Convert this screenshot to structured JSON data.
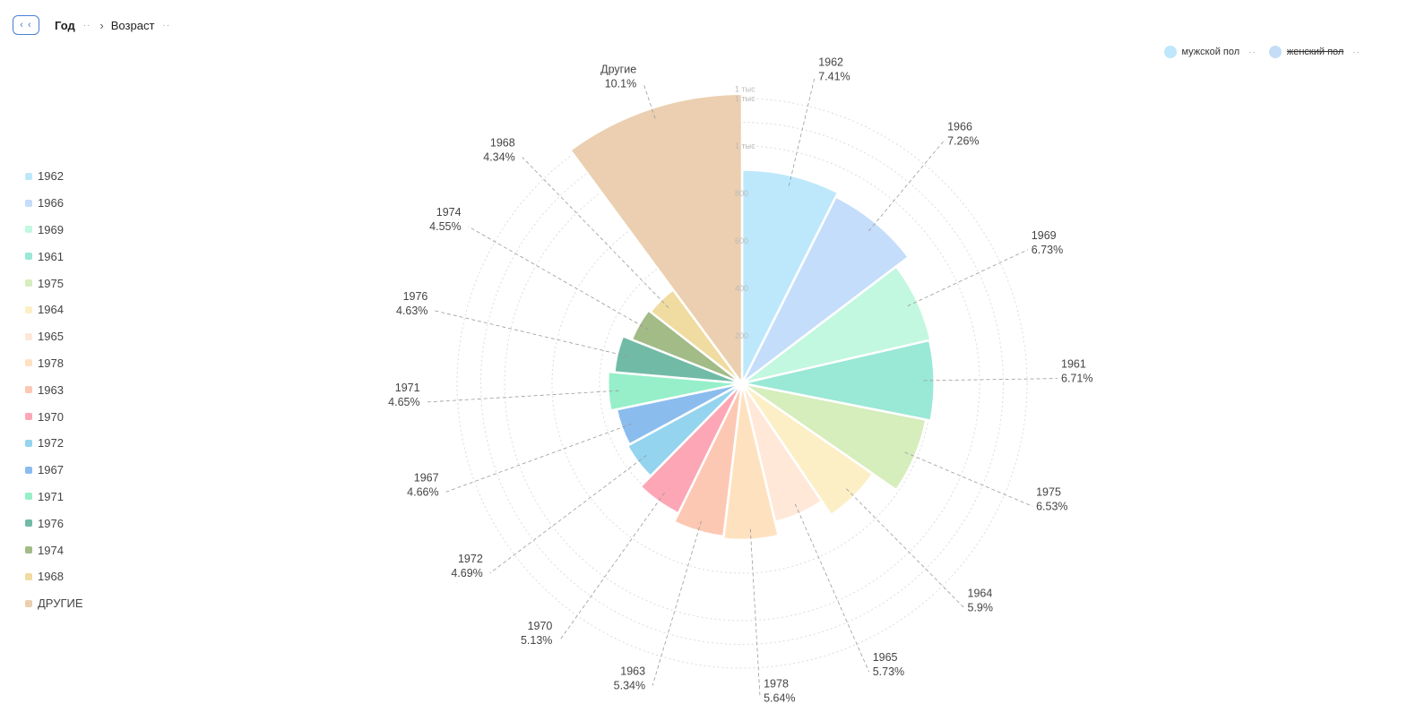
{
  "breadcrumb": {
    "back": "‹ ‹",
    "year": "Год",
    "dots": "··",
    "chevron": "›",
    "age": "Возраст"
  },
  "sex_legend": [
    {
      "label": "мужской пол",
      "color": "#bfe6fb",
      "active": true
    },
    {
      "label": "женский пол",
      "color": "#c4dcf6",
      "active": false
    }
  ],
  "sex_legend_dots": "··",
  "radial_ticks": [
    "200",
    "400",
    "600",
    "800",
    "1 тыс",
    "1 тыс",
    "1 тыс"
  ],
  "chart_data": {
    "type": "polar-bar",
    "r_max": 1220,
    "categories": [
      "1962",
      "1966",
      "1969",
      "1961",
      "1975",
      "1964",
      "1965",
      "1978",
      "1963",
      "1970",
      "1972",
      "1967",
      "1971",
      "1976",
      "1974",
      "1968",
      "Другие"
    ],
    "legend_labels": [
      "1962",
      "1966",
      "1969",
      "1961",
      "1975",
      "1964",
      "1965",
      "1978",
      "1963",
      "1970",
      "1972",
      "1967",
      "1971",
      "1976",
      "1974",
      "1968",
      "ДРУГИЕ"
    ],
    "percent_labels": [
      "7.41%",
      "7.26%",
      "6.73%",
      "6.71%",
      "6.53%",
      "5.9%",
      "5.73%",
      "5.64%",
      "5.34%",
      "5.13%",
      "4.69%",
      "4.66%",
      "4.65%",
      "4.63%",
      "4.55%",
      "4.34%",
      "10.1%"
    ],
    "shares": [
      7.41,
      7.26,
      6.73,
      6.71,
      6.53,
      5.9,
      5.73,
      5.64,
      5.34,
      5.13,
      4.69,
      4.66,
      4.65,
      4.63,
      4.55,
      4.34,
      10.1
    ],
    "values": [
      900,
      880,
      815,
      810,
      790,
      670,
      600,
      660,
      650,
      610,
      550,
      540,
      565,
      540,
      500,
      490,
      1220
    ],
    "colors": [
      "#bde8fb",
      "#c4ddfa",
      "#c2f7e0",
      "#9ae8d6",
      "#d6edbc",
      "#fcefc6",
      "#ffe8d8",
      "#fee2c0",
      "#fcc8b4",
      "#fda6b5",
      "#94d4ef",
      "#8bbcee",
      "#96efc9",
      "#71bba6",
      "#a2bb87",
      "#f0dba0",
      "#ebcfb0"
    ]
  }
}
